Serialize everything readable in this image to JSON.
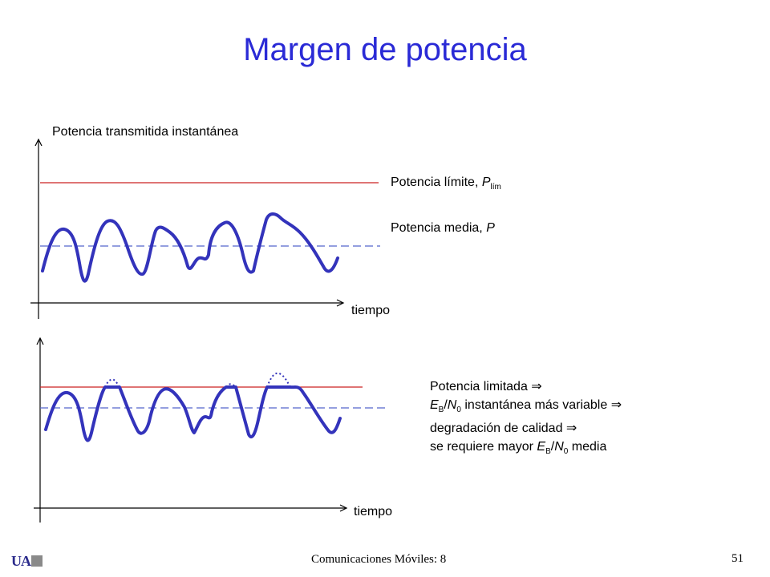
{
  "title": "Margen de potencia",
  "top_plot": {
    "y_label": "Potencia transmitida instantánea",
    "limit_label": "Potencia límite, ",
    "limit_symbol": "P",
    "limit_subscript": "lím",
    "mean_label": "Potencia media, ",
    "mean_symbol": "P",
    "x_label": "tiempo"
  },
  "bottom_plot": {
    "x_label": "tiempo"
  },
  "note": {
    "line1": "Potencia limitada",
    "line2_E": "E",
    "line2_B": "B",
    "line2_slash": "/",
    "line2_N": "N",
    "line2_0": "0",
    "line2_rest": " instantánea más variable",
    "line3": "degradación de calidad",
    "line4_pre": "se requiere mayor ",
    "line4_E": "E",
    "line4_B": "B",
    "line4_slash": "/",
    "line4_N": "N",
    "line4_0": "0",
    "line4_post": " media",
    "implies": "⇒"
  },
  "footer": {
    "course": "Comunicaciones Móviles: 8",
    "page": "51",
    "logo": "UA"
  },
  "colors": {
    "title": "#2a2ad6",
    "curve": "#3333bb",
    "limit_line": "#cc2222",
    "mean_line": "#5566cc"
  }
}
